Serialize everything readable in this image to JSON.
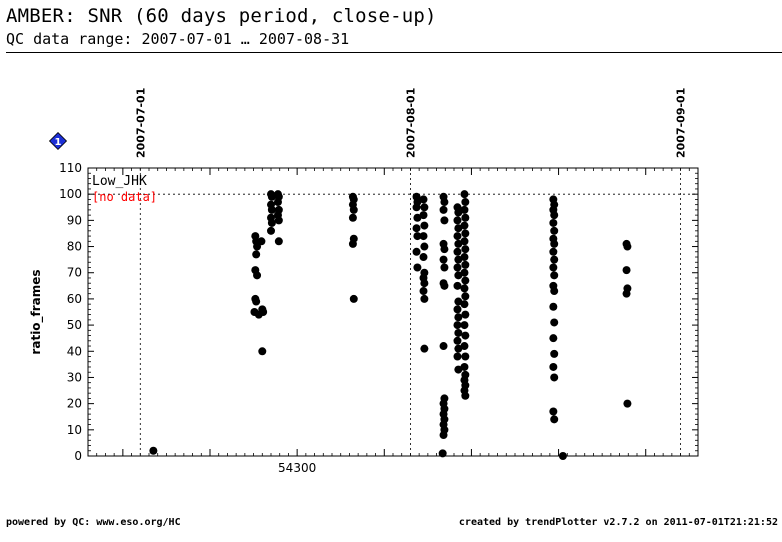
{
  "title": "AMBER: SNR (60 days period, close-up)",
  "subtitle": "QC data range: 2007-07-01 … 2007-08-31",
  "footer": {
    "left": "powered by QC: www.eso.org/HC",
    "right": "created by trendPlotter v2.7.2 on 2011-07-01T21:21:52"
  },
  "chart_data": {
    "type": "scatter",
    "ylabel": "ratio_frames",
    "xlabel": "",
    "ylim": [
      0,
      110
    ],
    "xlim": [
      54276.0,
      54346.0
    ],
    "yticks": [
      0,
      10,
      20,
      30,
      40,
      50,
      60,
      70,
      80,
      90,
      100,
      110
    ],
    "xtick_labels": [
      {
        "value": 54300,
        "label": "54300"
      }
    ],
    "reference_line": 100,
    "date_markers": [
      {
        "x": 54282,
        "label": "2007-07-01"
      },
      {
        "x": 54313,
        "label": "2007-08-01"
      },
      {
        "x": 54344,
        "label": "2007-09-01"
      }
    ],
    "badge": "1",
    "legend": {
      "setting": "Low_JHK",
      "note": "[no data]",
      "note_color": "#ff0000",
      "placement": "top-left"
    },
    "series": [
      {
        "color": "#000000",
        "points": [
          [
            54283.5,
            2
          ],
          [
            54295.2,
            84
          ],
          [
            54295.3,
            82
          ],
          [
            54295.4,
            80
          ],
          [
            54295.3,
            77
          ],
          [
            54295.2,
            71
          ],
          [
            54295.4,
            69
          ],
          [
            54295.2,
            60
          ],
          [
            54295.3,
            59
          ],
          [
            54295.1,
            55
          ],
          [
            54295.6,
            54
          ],
          [
            54295.9,
            82
          ],
          [
            54296.0,
            56
          ],
          [
            54296.1,
            55
          ],
          [
            54296.0,
            40
          ],
          [
            54297.0,
            100
          ],
          [
            54297.1,
            99
          ],
          [
            54297.0,
            96
          ],
          [
            54297.1,
            94
          ],
          [
            54297.0,
            91
          ],
          [
            54297.1,
            89
          ],
          [
            54297.0,
            86
          ],
          [
            54297.8,
            100
          ],
          [
            54297.9,
            99
          ],
          [
            54297.8,
            97
          ],
          [
            54297.9,
            94
          ],
          [
            54297.8,
            92
          ],
          [
            54297.9,
            90
          ],
          [
            54297.9,
            82
          ],
          [
            54306.4,
            99
          ],
          [
            54306.5,
            98
          ],
          [
            54306.4,
            96
          ],
          [
            54306.5,
            94
          ],
          [
            54306.4,
            91
          ],
          [
            54306.5,
            83
          ],
          [
            54306.4,
            81
          ],
          [
            54306.5,
            60
          ],
          [
            54313.7,
            99
          ],
          [
            54313.8,
            97
          ],
          [
            54313.7,
            95
          ],
          [
            54313.8,
            91
          ],
          [
            54313.7,
            87
          ],
          [
            54313.8,
            84
          ],
          [
            54313.7,
            78
          ],
          [
            54313.8,
            72
          ],
          [
            54314.5,
            98
          ],
          [
            54314.6,
            95
          ],
          [
            54314.5,
            92
          ],
          [
            54314.6,
            88
          ],
          [
            54314.5,
            84
          ],
          [
            54314.6,
            80
          ],
          [
            54314.5,
            76
          ],
          [
            54314.6,
            70
          ],
          [
            54314.5,
            68
          ],
          [
            54314.6,
            66
          ],
          [
            54314.5,
            63
          ],
          [
            54314.6,
            60
          ],
          [
            54314.6,
            41
          ],
          [
            54316.8,
            99
          ],
          [
            54316.9,
            97
          ],
          [
            54316.8,
            94
          ],
          [
            54316.9,
            90
          ],
          [
            54316.8,
            81
          ],
          [
            54316.9,
            79
          ],
          [
            54316.8,
            75
          ],
          [
            54316.9,
            72
          ],
          [
            54316.8,
            66
          ],
          [
            54316.9,
            65
          ],
          [
            54316.8,
            42
          ],
          [
            54316.9,
            22
          ],
          [
            54316.8,
            20
          ],
          [
            54316.9,
            18
          ],
          [
            54316.8,
            16
          ],
          [
            54316.9,
            14
          ],
          [
            54316.8,
            12
          ],
          [
            54316.9,
            10
          ],
          [
            54316.8,
            8
          ],
          [
            54316.7,
            1
          ],
          [
            54318.4,
            95
          ],
          [
            54318.5,
            93
          ],
          [
            54318.4,
            90
          ],
          [
            54318.5,
            87
          ],
          [
            54318.4,
            84
          ],
          [
            54318.5,
            81
          ],
          [
            54318.4,
            78
          ],
          [
            54318.5,
            75
          ],
          [
            54318.4,
            72
          ],
          [
            54318.5,
            69
          ],
          [
            54318.4,
            65
          ],
          [
            54318.5,
            59
          ],
          [
            54318.4,
            56
          ],
          [
            54318.5,
            53
          ],
          [
            54318.4,
            50
          ],
          [
            54318.5,
            47
          ],
          [
            54318.4,
            44
          ],
          [
            54318.5,
            41
          ],
          [
            54318.4,
            38
          ],
          [
            54318.5,
            33
          ],
          [
            54319.2,
            100
          ],
          [
            54319.3,
            97
          ],
          [
            54319.2,
            94
          ],
          [
            54319.3,
            91
          ],
          [
            54319.2,
            88
          ],
          [
            54319.3,
            85
          ],
          [
            54319.2,
            82
          ],
          [
            54319.3,
            79
          ],
          [
            54319.2,
            76
          ],
          [
            54319.3,
            73
          ],
          [
            54319.2,
            70
          ],
          [
            54319.3,
            67
          ],
          [
            54319.2,
            64
          ],
          [
            54319.3,
            61
          ],
          [
            54319.2,
            58
          ],
          [
            54319.3,
            54
          ],
          [
            54319.2,
            50
          ],
          [
            54319.3,
            46
          ],
          [
            54319.2,
            42
          ],
          [
            54319.3,
            38
          ],
          [
            54319.2,
            34
          ],
          [
            54319.3,
            31
          ],
          [
            54319.2,
            29
          ],
          [
            54319.3,
            27
          ],
          [
            54319.2,
            25
          ],
          [
            54319.3,
            23
          ],
          [
            54329.4,
            98
          ],
          [
            54329.5,
            96
          ],
          [
            54329.4,
            94
          ],
          [
            54329.5,
            92
          ],
          [
            54329.4,
            89
          ],
          [
            54329.5,
            86
          ],
          [
            54329.4,
            83
          ],
          [
            54329.5,
            81
          ],
          [
            54329.4,
            78
          ],
          [
            54329.5,
            75
          ],
          [
            54329.4,
            72
          ],
          [
            54329.5,
            69
          ],
          [
            54329.4,
            65
          ],
          [
            54329.5,
            63
          ],
          [
            54329.4,
            57
          ],
          [
            54329.5,
            51
          ],
          [
            54329.4,
            45
          ],
          [
            54329.5,
            39
          ],
          [
            54329.4,
            34
          ],
          [
            54329.5,
            30
          ],
          [
            54329.4,
            17
          ],
          [
            54329.5,
            14
          ],
          [
            54330.5,
            0
          ],
          [
            54337.8,
            81
          ],
          [
            54337.9,
            80
          ],
          [
            54337.8,
            71
          ],
          [
            54337.9,
            64
          ],
          [
            54337.8,
            62
          ],
          [
            54337.9,
            20
          ]
        ]
      }
    ]
  }
}
